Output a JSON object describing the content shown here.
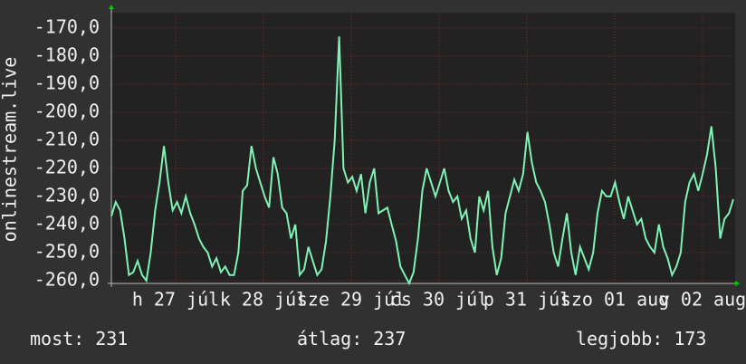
{
  "chart_data": {
    "type": "line",
    "y_label": "onlinestream.live",
    "x_labels": [
      "h 27 júl",
      "k 28 júl",
      "sze 29 júl",
      "cs 30 júl",
      "p 31 júl",
      "szo 01 aug",
      "v 02 aug"
    ],
    "ylim": [
      -261,
      -164.5
    ],
    "yticks": [
      {
        "value": -170,
        "label": "-170,0"
      },
      {
        "value": -180,
        "label": "-180,0"
      },
      {
        "value": -190,
        "label": "-190,0"
      },
      {
        "value": -200,
        "label": "-200,0"
      },
      {
        "value": -210,
        "label": "-210,0"
      },
      {
        "value": -220,
        "label": "-220,0"
      },
      {
        "value": -230,
        "label": "-230,0"
      },
      {
        "value": -240,
        "label": "-240,0"
      },
      {
        "value": -250,
        "label": "-250,0"
      },
      {
        "value": -260,
        "label": "-260,0"
      }
    ],
    "grid": true,
    "series": [
      {
        "color": "#7ff2b4",
        "values": [
          -237,
          -232,
          -235,
          -245,
          -258,
          -257,
          -253,
          -258,
          -260,
          -250,
          -235,
          -225,
          -212,
          -225,
          -235,
          -232,
          -236,
          -230,
          -236,
          -240,
          -245,
          -248,
          -250,
          -255,
          -252,
          -257,
          -255,
          -258,
          -258,
          -250,
          -228,
          -226,
          -212,
          -220,
          -225,
          -230,
          -234,
          -216,
          -222,
          -234,
          -236,
          -245,
          -240,
          -258,
          -256,
          -248,
          -253,
          -258,
          -256,
          -246,
          -230,
          -210,
          -173,
          -220,
          -225,
          -223,
          -228,
          -222,
          -236,
          -225,
          -220,
          -236,
          -235,
          -234,
          -240,
          -246,
          -255,
          -258,
          -261,
          -257,
          -245,
          -228,
          -220,
          -225,
          -230,
          -225,
          -220,
          -228,
          -232,
          -230,
          -238,
          -235,
          -245,
          -250,
          -230,
          -235,
          -228,
          -248,
          -258,
          -252,
          -236,
          -230,
          -224,
          -228,
          -222,
          -207,
          -218,
          -225,
          -228,
          -232,
          -240,
          -250,
          -255,
          -245,
          -236,
          -250,
          -258,
          -248,
          -252,
          -256,
          -250,
          -236,
          -228,
          -230,
          -230,
          -225,
          -232,
          -238,
          -230,
          -235,
          -240,
          -238,
          -245,
          -248,
          -250,
          -240,
          -248,
          -252,
          -258,
          -255,
          -250,
          -232,
          -225,
          -222,
          -228,
          -222,
          -215,
          -205,
          -220,
          -245,
          -238,
          -236,
          -231
        ]
      }
    ]
  },
  "footer": [
    {
      "label": "most:",
      "value": 231
    },
    {
      "label": "átlag:",
      "value": 237
    },
    {
      "label": "legjobb:",
      "value": 173
    }
  ]
}
